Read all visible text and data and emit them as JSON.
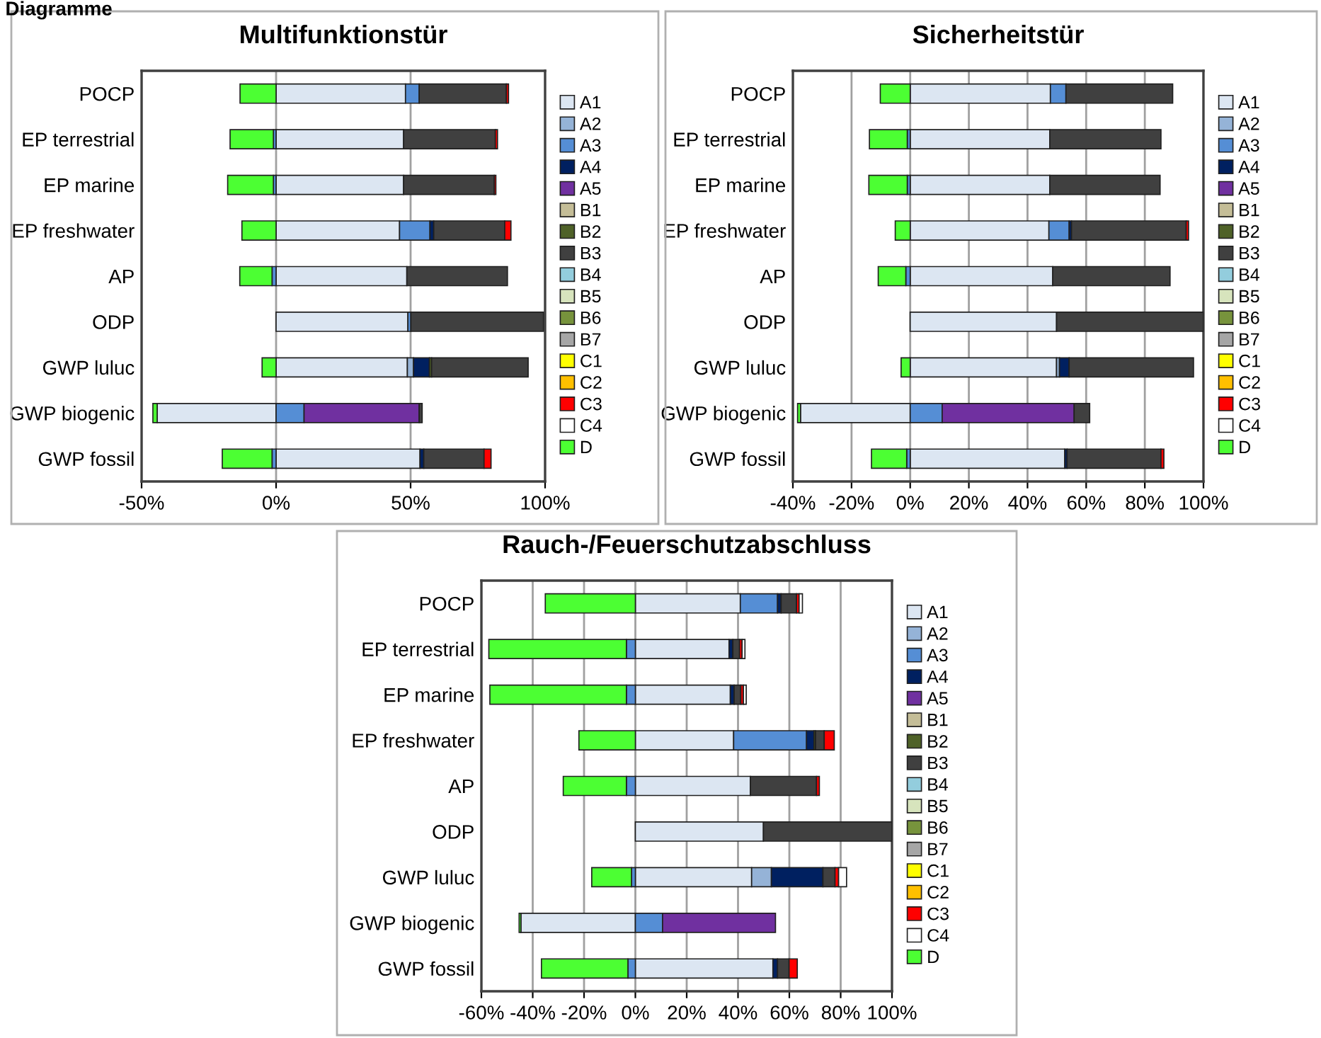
{
  "chart_data": [
    {
      "type": "bar",
      "orientation": "horizontal",
      "stacked": true,
      "title": "Multifunktionstür",
      "annotations": [
        "Diagramme"
      ],
      "categories": [
        "POCP",
        "EP terrestrial",
        "EP marine",
        "EP freshwater",
        "AP",
        "ODP",
        "GWP luluc",
        "GWP biogenic",
        "GWP fossil"
      ],
      "xlim": [
        -50,
        100
      ],
      "xticks": [
        {
          "value": -50,
          "label": "-50%"
        },
        {
          "value": 0,
          "label": "0%"
        },
        {
          "value": 50,
          "label": "50%"
        },
        {
          "value": 100,
          "label": "100%"
        }
      ],
      "grid": "x",
      "legend": "right",
      "series": [
        {
          "name": "A1",
          "color": "#dce6f2",
          "values": [
            48.1,
            47.4,
            47.4,
            45.9,
            48.6,
            49.0,
            48.8,
            -44.2,
            53.5
          ]
        },
        {
          "name": "A2",
          "color": "#95b3d7",
          "values": [
            null,
            null,
            null,
            null,
            null,
            null,
            2.3,
            null,
            null
          ]
        },
        {
          "name": "A3",
          "color": "#558ed5",
          "values": [
            5.1,
            -1.0,
            -1.0,
            11.3,
            -1.5,
            1.1,
            null,
            10.4,
            -1.5
          ]
        },
        {
          "name": "A4",
          "color": "#002060",
          "values": [
            null,
            null,
            null,
            1.4,
            null,
            null,
            5.9,
            null,
            1.4
          ]
        },
        {
          "name": "A5",
          "color": "#7030a0",
          "values": [
            null,
            null,
            null,
            null,
            null,
            null,
            null,
            42.8,
            null
          ]
        },
        {
          "name": "B1",
          "color": "#c4bd97",
          "values": [
            null,
            null,
            null,
            null,
            null,
            null,
            null,
            null,
            null
          ]
        },
        {
          "name": "B2",
          "color": "#4f6228",
          "values": [
            null,
            null,
            null,
            null,
            null,
            null,
            0.8,
            null,
            null
          ]
        },
        {
          "name": "B3",
          "color": "#404040",
          "values": [
            32.4,
            34.1,
            33.7,
            26.4,
            37.4,
            49.3,
            35.9,
            1.1,
            22.4
          ]
        },
        {
          "name": "B4",
          "color": "#93cddd",
          "values": [
            null,
            null,
            null,
            null,
            null,
            null,
            null,
            null,
            null
          ]
        },
        {
          "name": "B5",
          "color": "#d7e4bd",
          "values": [
            null,
            null,
            null,
            null,
            null,
            null,
            null,
            null,
            null
          ]
        },
        {
          "name": "B6",
          "color": "#77933c",
          "values": [
            null,
            null,
            null,
            null,
            null,
            null,
            null,
            null,
            null
          ]
        },
        {
          "name": "B7",
          "color": "#a6a6a6",
          "values": [
            null,
            null,
            null,
            null,
            null,
            null,
            null,
            null,
            null
          ]
        },
        {
          "name": "C1",
          "color": "#ffff00",
          "values": [
            null,
            null,
            null,
            null,
            null,
            null,
            null,
            null,
            null
          ]
        },
        {
          "name": "C2",
          "color": "#ffc000",
          "values": [
            null,
            null,
            null,
            null,
            null,
            null,
            null,
            null,
            null
          ]
        },
        {
          "name": "C3",
          "color": "#ff0000",
          "values": [
            0.8,
            0.8,
            0.6,
            2.3,
            null,
            null,
            null,
            null,
            2.6
          ]
        },
        {
          "name": "C4",
          "color": "#ffffff",
          "values": [
            null,
            null,
            null,
            null,
            null,
            null,
            null,
            null,
            null
          ]
        },
        {
          "name": "D",
          "color": "#4cff33",
          "values": [
            -13.4,
            -16.1,
            -17.0,
            -12.7,
            -12.0,
            null,
            -5.2,
            -1.6,
            -18.5
          ]
        }
      ]
    },
    {
      "type": "bar",
      "orientation": "horizontal",
      "stacked": true,
      "title": "Sicherheitstür",
      "categories": [
        "POCP",
        "EP terrestrial",
        "EP marine",
        "EP freshwater",
        "AP",
        "ODP",
        "GWP luluc",
        "GWP biogenic",
        "GWP fossil"
      ],
      "xlim": [
        -40,
        100
      ],
      "xticks": [
        {
          "value": -40,
          "label": "-40%"
        },
        {
          "value": -20,
          "label": "-20%"
        },
        {
          "value": 0,
          "label": "0%"
        },
        {
          "value": 20,
          "label": "20%"
        },
        {
          "value": 40,
          "label": "40%"
        },
        {
          "value": 60,
          "label": "60%"
        },
        {
          "value": 80,
          "label": "80%"
        },
        {
          "value": 100,
          "label": "100%"
        }
      ],
      "grid": "x",
      "legend": "right",
      "series": [
        {
          "name": "A1",
          "color": "#dce6f2",
          "values": [
            47.8,
            47.6,
            47.6,
            47.3,
            48.6,
            49.9,
            49.9,
            -37.4,
            52.7
          ]
        },
        {
          "name": "A2",
          "color": "#95b3d7",
          "values": [
            null,
            null,
            null,
            null,
            null,
            null,
            1.0,
            null,
            null
          ]
        },
        {
          "name": "A3",
          "color": "#558ed5",
          "values": [
            5.3,
            -1.0,
            -1.0,
            6.9,
            -1.5,
            null,
            null,
            10.9,
            -1.2
          ]
        },
        {
          "name": "A4",
          "color": "#002060",
          "values": [
            null,
            null,
            null,
            0.8,
            null,
            null,
            3.3,
            null,
            0.8
          ]
        },
        {
          "name": "A5",
          "color": "#7030a0",
          "values": [
            null,
            null,
            null,
            null,
            null,
            null,
            null,
            45.0,
            null
          ]
        },
        {
          "name": "B1",
          "color": "#c4bd97",
          "values": [
            null,
            null,
            null,
            null,
            null,
            null,
            null,
            null,
            null
          ]
        },
        {
          "name": "B2",
          "color": "#4f6228",
          "values": [
            null,
            null,
            null,
            null,
            null,
            null,
            null,
            null,
            null
          ]
        },
        {
          "name": "B3",
          "color": "#404040",
          "values": [
            36.4,
            37.9,
            37.6,
            39.1,
            40.0,
            50.1,
            42.4,
            5.3,
            32.0
          ]
        },
        {
          "name": "B4",
          "color": "#93cddd",
          "values": [
            null,
            null,
            null,
            null,
            null,
            null,
            null,
            null,
            null
          ]
        },
        {
          "name": "B5",
          "color": "#d7e4bd",
          "values": [
            null,
            null,
            null,
            null,
            null,
            null,
            null,
            null,
            null
          ]
        },
        {
          "name": "B6",
          "color": "#77933c",
          "values": [
            null,
            null,
            null,
            null,
            null,
            null,
            null,
            null,
            null
          ]
        },
        {
          "name": "B7",
          "color": "#a6a6a6",
          "values": [
            null,
            null,
            null,
            null,
            null,
            null,
            null,
            null,
            null
          ]
        },
        {
          "name": "C1",
          "color": "#ffff00",
          "values": [
            null,
            null,
            null,
            null,
            null,
            null,
            null,
            null,
            null
          ]
        },
        {
          "name": "C2",
          "color": "#ffc000",
          "values": [
            null,
            null,
            null,
            null,
            null,
            null,
            null,
            null,
            null
          ]
        },
        {
          "name": "C3",
          "color": "#ff0000",
          "values": [
            null,
            null,
            null,
            0.8,
            null,
            null,
            null,
            null,
            1.0
          ]
        },
        {
          "name": "C4",
          "color": "#ffffff",
          "values": [
            null,
            null,
            null,
            null,
            null,
            null,
            null,
            null,
            null
          ]
        },
        {
          "name": "D",
          "color": "#4cff33",
          "values": [
            -10.2,
            -12.9,
            -13.1,
            -5.1,
            -9.4,
            null,
            -3.1,
            -1.0,
            -12.0
          ]
        }
      ]
    },
    {
      "type": "bar",
      "orientation": "horizontal",
      "stacked": true,
      "title": "Rauch-/Feuerschutzabschluss",
      "categories": [
        "POCP",
        "EP terrestrial",
        "EP marine",
        "EP freshwater",
        "AP",
        "ODP",
        "GWP luluc",
        "GWP biogenic",
        "GWP fossil"
      ],
      "xlim": [
        -60,
        100
      ],
      "xticks": [
        {
          "value": -60,
          "label": "-60%"
        },
        {
          "value": -40,
          "label": "-40%"
        },
        {
          "value": -20,
          "label": "-20%"
        },
        {
          "value": 0,
          "label": "0%"
        },
        {
          "value": 20,
          "label": "20%"
        },
        {
          "value": 40,
          "label": "40%"
        },
        {
          "value": 60,
          "label": "60%"
        },
        {
          "value": 80,
          "label": "80%"
        },
        {
          "value": 100,
          "label": "100%"
        }
      ],
      "grid": "x",
      "legend": "right",
      "series": [
        {
          "name": "A1",
          "color": "#dce6f2",
          "values": [
            40.9,
            36.5,
            37.0,
            38.3,
            44.8,
            49.9,
            45.3,
            -44.6,
            53.6
          ]
        },
        {
          "name": "A2",
          "color": "#95b3d7",
          "values": [
            null,
            null,
            null,
            null,
            null,
            null,
            7.7,
            null,
            null
          ]
        },
        {
          "name": "A3",
          "color": "#558ed5",
          "values": [
            14.5,
            -3.5,
            -3.5,
            28.4,
            -3.5,
            null,
            -1.5,
            10.6,
            -2.9
          ]
        },
        {
          "name": "A4",
          "color": "#002060",
          "values": [
            1.4,
            1.5,
            1.5,
            2.9,
            null,
            null,
            20.1,
            null,
            1.8
          ]
        },
        {
          "name": "A5",
          "color": "#7030a0",
          "values": [
            null,
            null,
            null,
            null,
            null,
            null,
            null,
            44.0,
            null
          ]
        },
        {
          "name": "B1",
          "color": "#c4bd97",
          "values": [
            null,
            null,
            null,
            null,
            null,
            null,
            null,
            null,
            null
          ]
        },
        {
          "name": "B2",
          "color": "#4f6228",
          "values": [
            null,
            null,
            null,
            0.6,
            null,
            null,
            null,
            null,
            null
          ]
        },
        {
          "name": "B3",
          "color": "#404040",
          "values": [
            6.0,
            2.6,
            2.6,
            3.4,
            25.8,
            50.1,
            4.7,
            null,
            4.5
          ]
        },
        {
          "name": "B4",
          "color": "#93cddd",
          "values": [
            null,
            null,
            null,
            null,
            null,
            null,
            null,
            null,
            null
          ]
        },
        {
          "name": "B5",
          "color": "#d7e4bd",
          "values": [
            null,
            null,
            null,
            null,
            null,
            null,
            null,
            null,
            null
          ]
        },
        {
          "name": "B6",
          "color": "#77933c",
          "values": [
            null,
            null,
            null,
            null,
            null,
            null,
            null,
            null,
            null
          ]
        },
        {
          "name": "B7",
          "color": "#a6a6a6",
          "values": [
            null,
            null,
            null,
            null,
            null,
            null,
            null,
            null,
            null
          ]
        },
        {
          "name": "C1",
          "color": "#ffff00",
          "values": [
            null,
            null,
            null,
            null,
            null,
            null,
            null,
            null,
            null
          ]
        },
        {
          "name": "C2",
          "color": "#ffc000",
          "values": [
            null,
            null,
            null,
            null,
            null,
            null,
            null,
            null,
            null
          ]
        },
        {
          "name": "C3",
          "color": "#ff0000",
          "values": [
            1.0,
            1.0,
            1.0,
            3.9,
            1.1,
            null,
            1.4,
            null,
            3.2
          ]
        },
        {
          "name": "C4",
          "color": "#ffffff",
          "values": [
            1.3,
            1.1,
            1.1,
            null,
            null,
            null,
            3.1,
            null,
            null
          ]
        },
        {
          "name": "D",
          "color": "#4cff33",
          "values": [
            -35.1,
            -53.6,
            -53.2,
            -22.0,
            -24.6,
            null,
            -15.5,
            -0.7,
            -33.7
          ]
        }
      ]
    }
  ]
}
